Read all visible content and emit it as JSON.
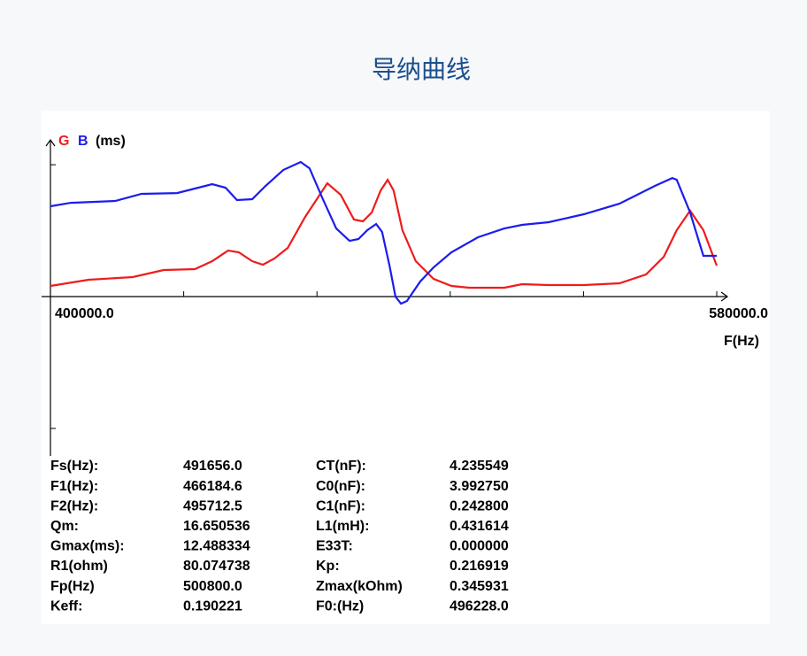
{
  "chart_data": {
    "type": "line",
    "title": "导纳曲线",
    "xlabel": "F(Hz)",
    "ylabel_unit": "(ms)",
    "xlim": [
      400000,
      580000
    ],
    "ylim": [
      -18,
      18
    ],
    "xticks": [
      {
        "value": 400000,
        "label": "400000.0"
      },
      {
        "value": 436000,
        "label": null
      },
      {
        "value": 472000,
        "label": null
      },
      {
        "value": 508000,
        "label": null
      },
      {
        "value": 544000,
        "label": null
      },
      {
        "value": 580000,
        "label": "580000.0"
      }
    ],
    "yticks": [
      {
        "value": -15,
        "label": null
      },
      {
        "value": 15,
        "label": null
      }
    ],
    "series": [
      {
        "name": "G",
        "color": "#ee1c1c",
        "x": [
          400000,
          410300,
          422200,
          430600,
          439000,
          443700,
          448000,
          450900,
          454500,
          457400,
          460500,
          464100,
          468800,
          474800,
          478400,
          482000,
          484400,
          486800,
          489200,
          491100,
          492700,
          495100,
          498700,
          503500,
          508300,
          513100,
          522600,
          527400,
          534600,
          544100,
          553700,
          560900,
          565700,
          569200,
          572800,
          576400,
          580000
        ],
        "values": [
          1.21,
          1.91,
          2.22,
          3.02,
          3.12,
          4.03,
          5.24,
          5.04,
          4.03,
          3.63,
          4.33,
          5.54,
          9.06,
          12.89,
          11.58,
          8.76,
          8.56,
          9.57,
          12.08,
          13.29,
          12.08,
          7.55,
          4.03,
          2.01,
          1.21,
          1.01,
          1.01,
          1.41,
          1.31,
          1.31,
          1.51,
          2.52,
          4.53,
          7.55,
          9.77,
          7.55,
          3.52
        ]
      },
      {
        "name": "B",
        "color": "#1c1cee",
        "x": [
          400000,
          405500,
          417500,
          424600,
          434200,
          439000,
          443700,
          447300,
          450400,
          454500,
          458100,
          462900,
          467600,
          470000,
          473600,
          477200,
          480800,
          483200,
          485600,
          488000,
          489600,
          491600,
          493200,
          494700,
          496300,
          499900,
          503500,
          508300,
          515500,
          522600,
          527400,
          534600,
          544100,
          553700,
          563300,
          568000,
          569200,
          572800,
          576400,
          580000
        ],
        "values": [
          10.27,
          10.67,
          10.88,
          11.68,
          11.78,
          12.29,
          12.79,
          12.39,
          10.98,
          11.08,
          12.59,
          14.4,
          15.31,
          14.6,
          11.08,
          7.75,
          6.34,
          6.55,
          7.55,
          8.26,
          7.35,
          3.52,
          0,
          -0.81,
          -0.5,
          1.71,
          3.32,
          5.04,
          6.75,
          7.75,
          8.16,
          8.46,
          9.37,
          10.57,
          12.59,
          13.49,
          13.29,
          9.57,
          4.63,
          4.63
        ]
      }
    ]
  },
  "parameters": {
    "rows": [
      [
        "Fs(Hz):",
        "491656.0",
        "CT(nF):",
        "4.235549"
      ],
      [
        "F1(Hz):",
        "466184.6",
        "C0(nF):",
        "3.992750"
      ],
      [
        "F2(Hz):",
        "495712.5",
        "C1(nF):",
        "0.242800"
      ],
      [
        "Qm:",
        "16.650536",
        "L1(mH):",
        "0.431614"
      ],
      [
        "Gmax(ms):",
        "12.488334",
        "E33T:",
        "0.000000"
      ],
      [
        "R1(ohm)",
        "80.074738",
        "Kp:",
        "0.216919"
      ],
      [
        "Fp(Hz)",
        "500800.0",
        "Zmax(kOhm)",
        "0.345931"
      ],
      [
        "Keff:",
        "0.190221",
        "F0:(Hz)",
        "496228.0"
      ]
    ]
  }
}
